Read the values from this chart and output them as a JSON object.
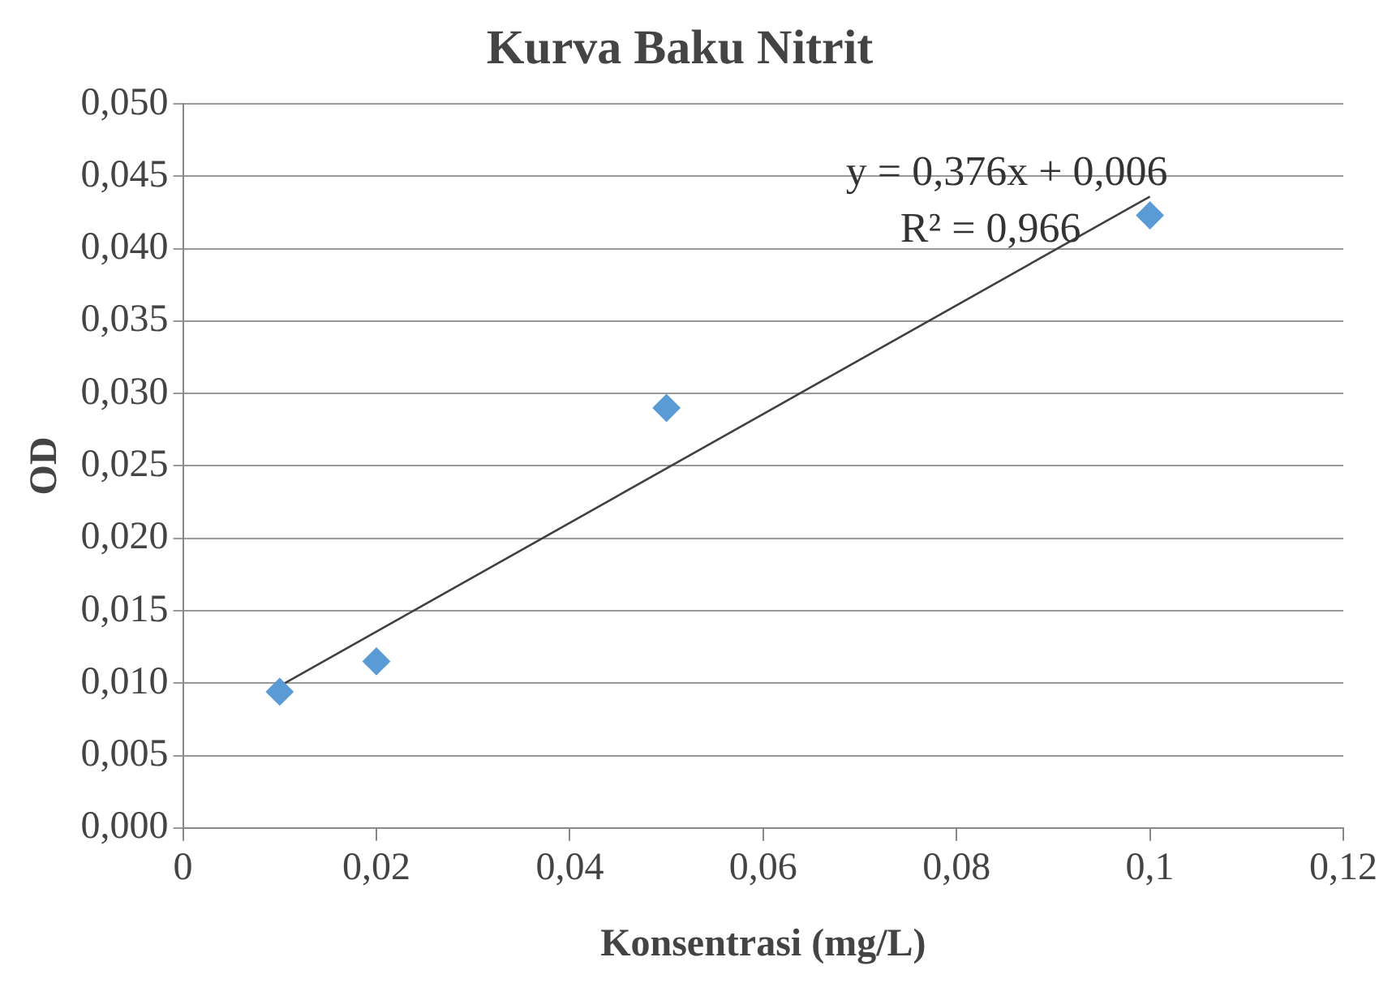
{
  "chart_data": {
    "type": "scatter",
    "title": "Kurva Baku Nitrit",
    "xlabel": "Konsentrasi (mg/L)",
    "ylabel": "OD",
    "x": [
      0.01,
      0.02,
      0.05,
      0.1
    ],
    "series": [
      {
        "color": "#5b9bd5",
        "marker": "diamond",
        "values": [
          0.0094,
          0.0115,
          0.029,
          0.0423
        ]
      },
      {
        "type": "line",
        "color": "#404040",
        "marker": "none",
        "x": [
          0.01,
          0.1
        ],
        "values": [
          0.0098,
          0.0436
        ]
      }
    ],
    "xlim": [
      0,
      0.12
    ],
    "ylim": [
      0,
      0.05
    ],
    "xticks": [
      {
        "value": 0,
        "label": "0"
      },
      {
        "value": 0.02,
        "label": "0,02"
      },
      {
        "value": 0.04,
        "label": "0,04"
      },
      {
        "value": 0.06,
        "label": "0,06"
      },
      {
        "value": 0.08,
        "label": "0,08"
      },
      {
        "value": 0.1,
        "label": "0,1"
      },
      {
        "value": 0.12,
        "label": "0,12"
      }
    ],
    "yticks": [
      {
        "value": 0,
        "label": "0,000"
      },
      {
        "value": 0.005,
        "label": "0,005"
      },
      {
        "value": 0.01,
        "label": "0,010"
      },
      {
        "value": 0.015,
        "label": "0,015"
      },
      {
        "value": 0.02,
        "label": "0,020"
      },
      {
        "value": 0.025,
        "label": "0,025"
      },
      {
        "value": 0.03,
        "label": "0,030"
      },
      {
        "value": 0.035,
        "label": "0,035"
      },
      {
        "value": 0.04,
        "label": "0,040"
      },
      {
        "value": 0.045,
        "label": "0,045"
      },
      {
        "value": 0.05,
        "label": "0,050"
      }
    ],
    "annotations": [
      "y = 0,376x + 0,006",
      "R² = 0,966"
    ],
    "grid": "y",
    "legend": false
  }
}
